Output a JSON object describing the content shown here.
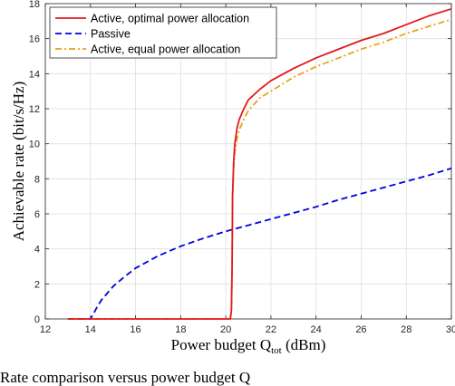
{
  "chart_data": {
    "type": "line",
    "xlabel": "Power budget Q",
    "xlabel_sub": "tot",
    "xlabel_unit": " (dBm)",
    "ylabel": "Achievable rate (bit/s/Hz)",
    "xlim": [
      12,
      30
    ],
    "ylim": [
      0,
      18
    ],
    "x_ticks": [
      12,
      14,
      16,
      18,
      20,
      22,
      24,
      26,
      28,
      30
    ],
    "y_ticks": [
      0,
      2,
      4,
      6,
      8,
      10,
      12,
      14,
      16,
      18
    ],
    "grid": true,
    "legend_position": "top-left",
    "series": [
      {
        "name": "Active, optimal power allocation",
        "color": "#e31a1c",
        "dash": "solid",
        "x": [
          13,
          20.2,
          20.25,
          20.28,
          20.3,
          20.35,
          20.4,
          20.5,
          20.6,
          20.8,
          21,
          21.5,
          22,
          23,
          24,
          25,
          26,
          27,
          28,
          29,
          30
        ],
        "y": [
          0,
          0,
          0.5,
          3,
          7,
          9,
          10,
          10.9,
          11.4,
          12,
          12.5,
          13.1,
          13.6,
          14.3,
          14.9,
          15.4,
          15.9,
          16.3,
          16.8,
          17.3,
          17.7
        ]
      },
      {
        "name": "Passive",
        "color": "#0000dd",
        "dash": "dashed",
        "x": [
          13,
          14,
          14.1,
          14.3,
          14.5,
          15,
          15.5,
          16,
          17,
          18,
          19,
          20,
          21,
          22,
          23,
          24,
          25,
          26,
          27,
          28,
          29,
          30
        ],
        "y": [
          0,
          0,
          0.2,
          0.7,
          1.1,
          1.85,
          2.4,
          2.9,
          3.6,
          4.15,
          4.6,
          5.0,
          5.35,
          5.7,
          6.05,
          6.4,
          6.8,
          7.15,
          7.5,
          7.85,
          8.2,
          8.6
        ]
      },
      {
        "name": "Active, equal power allocation",
        "color": "#e8a416",
        "dash": "dashdot",
        "x": [
          13,
          20.2,
          20.25,
          20.28,
          20.3,
          20.35,
          20.4,
          20.5,
          20.6,
          20.8,
          21,
          21.5,
          22,
          23,
          24,
          25,
          26,
          27,
          28,
          29,
          30
        ],
        "y": [
          0,
          0,
          0.5,
          3,
          7,
          8.6,
          9.5,
          10.3,
          10.8,
          11.4,
          11.9,
          12.6,
          13.0,
          13.8,
          14.4,
          14.9,
          15.4,
          15.8,
          16.3,
          16.7,
          17.1
        ]
      }
    ]
  },
  "caption": "Rate comparison versus power budget Q"
}
